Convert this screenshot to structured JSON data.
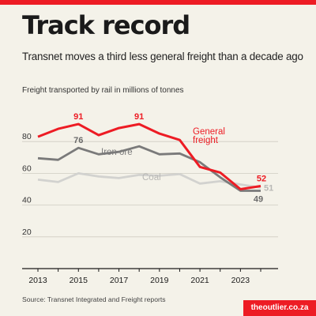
{
  "title": "Track record",
  "subtitle": "Transnet moves a third less general freight than a decade ago",
  "source": "Source: Transnet Integrated and Freight reports",
  "brand": "theoutlier.co.za",
  "colors": {
    "accent": "#ed1c24",
    "iron_ore": "#7a7a7a",
    "coal": "#d2d2cf",
    "background": "#f4f2e9"
  },
  "chart_data": {
    "type": "line",
    "ylabel": "Freight transported by rail in millions of tonnes",
    "xlabel": "",
    "x": [
      2013,
      2014,
      2015,
      2016,
      2017,
      2018,
      2019,
      2020,
      2021,
      2022,
      2023,
      2024
    ],
    "xticks": [
      "2013",
      "2015",
      "2017",
      "2019",
      "2021",
      "2023"
    ],
    "yticks": [
      20,
      40,
      60,
      80
    ],
    "xlim": [
      2013,
      2025
    ],
    "ylim": [
      0,
      97
    ],
    "grid": true,
    "series": [
      {
        "name": "Coal",
        "color": "#d2d2cf",
        "values": [
          56,
          54.5,
          60,
          58,
          57,
          59,
          58.5,
          59.5,
          53.5,
          55,
          53,
          51
        ],
        "labels": [
          {
            "index": 11,
            "text": "51"
          }
        ]
      },
      {
        "name": "Iron ore",
        "color": "#7a7a7a",
        "values": [
          69.5,
          68.5,
          76,
          72,
          73.5,
          77,
          72,
          72.5,
          67,
          57.5,
          49,
          49
        ],
        "labels": [
          {
            "index": 2,
            "text": "76"
          },
          {
            "index": 11,
            "text": "49"
          }
        ]
      },
      {
        "name": "General freight",
        "color": "#ed1c24",
        "values": [
          83,
          88,
          91,
          84,
          88.5,
          91,
          85,
          81,
          64,
          60.5,
          50,
          52
        ],
        "labels": [
          {
            "index": 2,
            "text": "91"
          },
          {
            "index": 5,
            "text": "91"
          },
          {
            "index": 11,
            "text": "52"
          }
        ]
      }
    ],
    "series_labels": [
      "Iron ore",
      "Coal",
      "General freight"
    ]
  }
}
